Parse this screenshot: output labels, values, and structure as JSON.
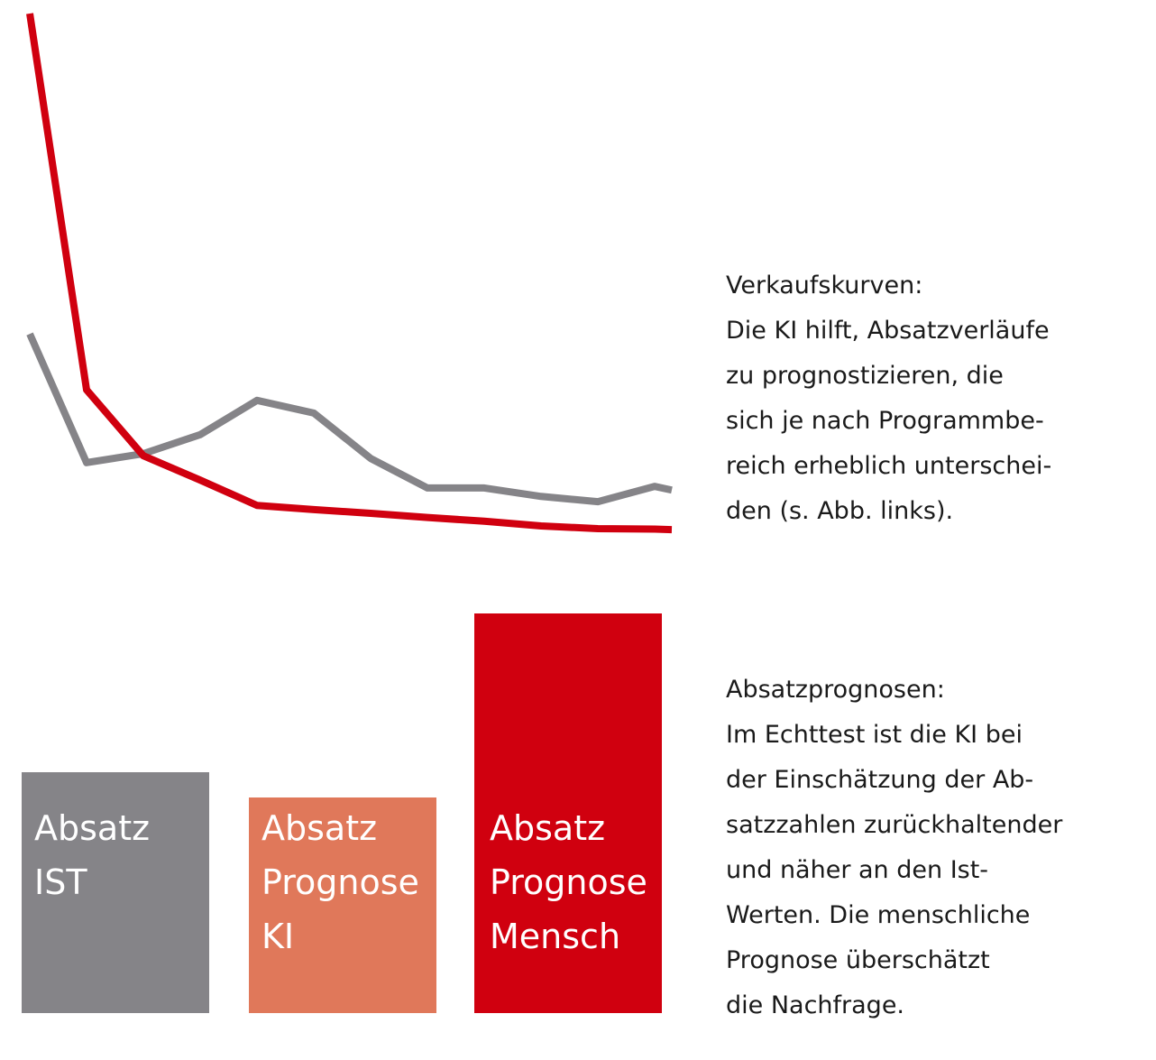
{
  "chart_data": [
    {
      "type": "line",
      "x": [
        0,
        1,
        2,
        3,
        4,
        5,
        6,
        7,
        8,
        9,
        10,
        11,
        11.3
      ],
      "xlim": [
        0,
        11.3
      ],
      "ylim": [
        0,
        100
      ],
      "series": [
        {
          "color": "#858488",
          "values": [
            39.3,
            14.9,
            16.6,
            20.2,
            26.7,
            24.3,
            15.7,
            10.1,
            10.1,
            8.5,
            7.5,
            10.4,
            9.7
          ]
        },
        {
          "color": "#d0000f",
          "values": [
            100,
            28.7,
            16.2,
            11.6,
            6.8,
            6.0,
            5.3,
            4.5,
            3.8,
            2.9,
            2.4,
            2.3,
            2.2
          ]
        }
      ],
      "description": {
        "heading": "Verkaufskurven:",
        "lines": [
          "Die KI hilft, Absatzverläufe",
          "zu prognostizieren, die",
          "sich je nach Programmbe-",
          "reich erheblich unterschei-",
          "den (s. Abb. links)."
        ]
      }
    },
    {
      "type": "bar",
      "categories": [
        "Absatz IST",
        "Absatz Prognose KI",
        "Absatz Prognose Mensch"
      ],
      "values": [
        267,
        239,
        443
      ],
      "colors": [
        "#858488",
        "#e0785a",
        "#d0000f"
      ],
      "ylim": [
        0,
        450
      ],
      "description": {
        "heading": "Absatzprognosen:",
        "lines": [
          "Im Echttest ist die KI bei",
          "der Einschätzung der Ab-",
          "satzzahlen zurückhaltender",
          "und näher an den Ist-",
          "Werten. Die menschliche",
          "Prognose überschätzt",
          "die Nachfrage."
        ]
      }
    }
  ]
}
